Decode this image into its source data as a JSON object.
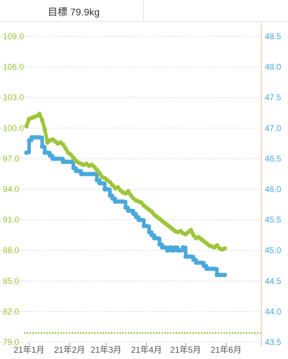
{
  "header": {
    "goal_label": "目標 79.9kg"
  },
  "colors": {
    "weight": "#9ec53a",
    "bodyfat": "#4aa8da",
    "goal_line": "#8dbb2a",
    "right_axis_line": "#f3cfb3",
    "grid": "#c9c9c9"
  },
  "chart_data": {
    "type": "line",
    "title": "",
    "xlabel": "",
    "ylabel": "",
    "x_ticks": [
      "21年1月",
      "21年2月",
      "21年3月",
      "21年4月",
      "21年5月",
      "21年6月"
    ],
    "y_left_ticks": [
      "109.0",
      "106.0",
      "103.0",
      "100.0",
      "97.0",
      "94.0",
      "91.0",
      "88.0",
      "85.0",
      "82.0",
      "79.0"
    ],
    "y_right_ticks": [
      "48.5",
      "48.0",
      "47.5",
      "47.0",
      "46.5",
      "46.0",
      "45.5",
      "45.0",
      "44.5",
      "44.0",
      "43.5"
    ],
    "ylim_left": [
      79.0,
      109.0
    ],
    "ylim_right": [
      43.5,
      48.5
    ],
    "xlim_days": [
      -4,
      178
    ],
    "goal_value": 79.9,
    "series": [
      {
        "axis": "left",
        "points": [
          [
            -2,
            100.2
          ],
          [
            0,
            100.9
          ],
          [
            2,
            101.0
          ],
          [
            4,
            101.1
          ],
          [
            6,
            101.2
          ],
          [
            8,
            101.4
          ],
          [
            10,
            100.8
          ],
          [
            12,
            99.9
          ],
          [
            14,
            98.6
          ],
          [
            16,
            98.8
          ],
          [
            18,
            98.9
          ],
          [
            20,
            98.7
          ],
          [
            22,
            98.5
          ],
          [
            24,
            98.6
          ],
          [
            26,
            98.4
          ],
          [
            28,
            98.0
          ],
          [
            30,
            97.6
          ],
          [
            32,
            97.4
          ],
          [
            34,
            97.1
          ],
          [
            36,
            96.8
          ],
          [
            38,
            96.6
          ],
          [
            40,
            96.5
          ],
          [
            42,
            96.4
          ],
          [
            44,
            96.5
          ],
          [
            46,
            96.3
          ],
          [
            48,
            96.4
          ],
          [
            50,
            96.2
          ],
          [
            52,
            95.9
          ],
          [
            54,
            95.6
          ],
          [
            56,
            95.2
          ],
          [
            58,
            95.1
          ],
          [
            60,
            94.9
          ],
          [
            62,
            94.7
          ],
          [
            64,
            94.4
          ],
          [
            66,
            94.1
          ],
          [
            68,
            94.2
          ],
          [
            70,
            93.9
          ],
          [
            72,
            93.7
          ],
          [
            74,
            93.6
          ],
          [
            76,
            93.8
          ],
          [
            78,
            93.4
          ],
          [
            80,
            93.1
          ],
          [
            82,
            92.9
          ],
          [
            84,
            92.8
          ],
          [
            86,
            92.7
          ],
          [
            88,
            92.4
          ],
          [
            90,
            92.2
          ],
          [
            92,
            92.0
          ],
          [
            94,
            91.8
          ],
          [
            96,
            91.5
          ],
          [
            98,
            91.3
          ],
          [
            100,
            91.1
          ],
          [
            102,
            90.9
          ],
          [
            104,
            90.7
          ],
          [
            106,
            90.5
          ],
          [
            108,
            90.3
          ],
          [
            110,
            90.1
          ],
          [
            112,
            89.9
          ],
          [
            114,
            89.8
          ],
          [
            116,
            89.9
          ],
          [
            118,
            89.7
          ],
          [
            120,
            89.6
          ],
          [
            122,
            89.8
          ],
          [
            124,
            90.0
          ],
          [
            126,
            89.5
          ],
          [
            128,
            89.2
          ],
          [
            130,
            89.3
          ],
          [
            132,
            89.1
          ],
          [
            134,
            88.9
          ],
          [
            136,
            88.7
          ],
          [
            138,
            88.5
          ],
          [
            140,
            88.4
          ],
          [
            142,
            88.3
          ],
          [
            144,
            88.5
          ],
          [
            146,
            88.2
          ],
          [
            148,
            88.1
          ],
          [
            150,
            88.2
          ]
        ]
      },
      {
        "axis": "right",
        "points": [
          [
            -2,
            46.6
          ],
          [
            0,
            46.8
          ],
          [
            2,
            46.85
          ],
          [
            4,
            46.85
          ],
          [
            6,
            46.85
          ],
          [
            8,
            46.85
          ],
          [
            10,
            46.7
          ],
          [
            12,
            46.6
          ],
          [
            14,
            46.6
          ],
          [
            16,
            46.55
          ],
          [
            18,
            46.5
          ],
          [
            20,
            46.5
          ],
          [
            22,
            46.5
          ],
          [
            24,
            46.5
          ],
          [
            26,
            46.45
          ],
          [
            28,
            46.45
          ],
          [
            30,
            46.45
          ],
          [
            32,
            46.45
          ],
          [
            34,
            46.35
          ],
          [
            36,
            46.3
          ],
          [
            38,
            46.3
          ],
          [
            40,
            46.25
          ],
          [
            42,
            46.25
          ],
          [
            44,
            46.25
          ],
          [
            46,
            46.25
          ],
          [
            48,
            46.25
          ],
          [
            50,
            46.25
          ],
          [
            52,
            46.15
          ],
          [
            54,
            46.1
          ],
          [
            56,
            46.1
          ],
          [
            58,
            46.0
          ],
          [
            60,
            46.0
          ],
          [
            62,
            45.9
          ],
          [
            64,
            45.85
          ],
          [
            66,
            45.8
          ],
          [
            68,
            45.8
          ],
          [
            70,
            45.8
          ],
          [
            72,
            45.8
          ],
          [
            74,
            45.7
          ],
          [
            76,
            45.65
          ],
          [
            78,
            45.65
          ],
          [
            80,
            45.6
          ],
          [
            82,
            45.55
          ],
          [
            84,
            45.5
          ],
          [
            86,
            45.5
          ],
          [
            88,
            45.4
          ],
          [
            90,
            45.4
          ],
          [
            92,
            45.3
          ],
          [
            94,
            45.25
          ],
          [
            96,
            45.2
          ],
          [
            98,
            45.2
          ],
          [
            100,
            45.1
          ],
          [
            102,
            45.05
          ],
          [
            104,
            45.05
          ],
          [
            106,
            45.0
          ],
          [
            108,
            45.05
          ],
          [
            110,
            45.0
          ],
          [
            112,
            45.05
          ],
          [
            114,
            45.0
          ],
          [
            116,
            45.0
          ],
          [
            118,
            45.05
          ],
          [
            120,
            44.9
          ],
          [
            122,
            44.9
          ],
          [
            124,
            44.9
          ],
          [
            126,
            44.85
          ],
          [
            128,
            44.8
          ],
          [
            130,
            44.8
          ],
          [
            132,
            44.8
          ],
          [
            134,
            44.75
          ],
          [
            136,
            44.7
          ],
          [
            138,
            44.7
          ],
          [
            140,
            44.7
          ],
          [
            142,
            44.7
          ],
          [
            144,
            44.6
          ],
          [
            146,
            44.6
          ],
          [
            148,
            44.6
          ],
          [
            150,
            44.6
          ]
        ]
      }
    ]
  }
}
